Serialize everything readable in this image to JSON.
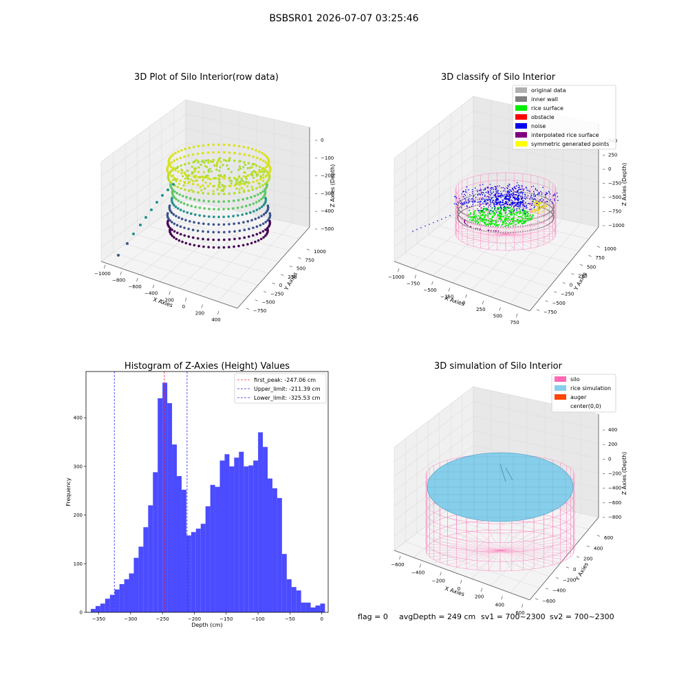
{
  "figure": {
    "suptitle": "BSBSR01 2026-07-07 03:25:46",
    "footer": {
      "flag": "flag = 0",
      "avg_depth": "avgDepth = 249 cm",
      "sv1": "sv1 = 700~2300",
      "sv2": "sv2 = 700~2300"
    }
  },
  "colors": {
    "hist_bar": "#4b4bff",
    "peak_line": "#ff2222",
    "limit_line": "#2222ff",
    "silo": "#ff69b4",
    "rice": "#87ceeb",
    "auger": "#ff4500",
    "original": "#b0b0b0",
    "inner_wall": "#808080",
    "rice_surface": "#00ee00",
    "obstacle": "#ff0000",
    "noise": "#0000ee",
    "interp": "#800080",
    "symmetric": "#ffff00"
  },
  "chart_data": [
    {
      "type": "scatter",
      "subtype": "3d",
      "title": "3D Plot of Silo Interior(row data)",
      "xlabel": "X Axies",
      "ylabel": "Y Axies",
      "zlabel": "Z Axies (Depth)",
      "x_ticks": [
        "−1000",
        "−800",
        "−600",
        "−400",
        "−200",
        "0",
        "200",
        "400"
      ],
      "y_ticks": [
        "−750",
        "−500",
        "−250",
        "0",
        "250",
        "500",
        "750",
        "1000"
      ],
      "z_ticks": [
        "0",
        "−100",
        "−200",
        "−300",
        "−400",
        "−500"
      ],
      "colormap": "viridis"
    },
    {
      "type": "scatter",
      "subtype": "3d",
      "title": "3D classify of Silo Interior",
      "xlabel": "X Axies",
      "ylabel": "Y Axies",
      "zlabel": "Z Axies (Depth)",
      "x_ticks": [
        "−1000",
        "−750",
        "−500",
        "−250",
        "0",
        "250",
        "500",
        "750"
      ],
      "y_ticks": [
        "−750",
        "−500",
        "−250",
        "0",
        "250",
        "500",
        "750",
        "1000"
      ],
      "z_ticks": [
        "500",
        "250",
        "0",
        "−250",
        "−500",
        "−750",
        "−1000"
      ],
      "legend": [
        {
          "label": "original data",
          "color": "#b0b0b0"
        },
        {
          "label": "inner wall",
          "color": "#808080"
        },
        {
          "label": "rice surface",
          "color": "#00ee00"
        },
        {
          "label": "obstacle",
          "color": "#ff0000"
        },
        {
          "label": "noise",
          "color": "#0000ee"
        },
        {
          "label": "interpolated rice surface",
          "color": "#800080"
        },
        {
          "label": "symmetric generated points",
          "color": "#ffff00"
        }
      ],
      "legend_position": "top-right"
    },
    {
      "type": "bar",
      "subtype": "histogram",
      "title": "Histogram of Z-Axies (Height) Values",
      "xlabel": "Depth (cm)",
      "ylabel": "Frequency",
      "xlim": [
        -370,
        10
      ],
      "ylim": [
        0,
        495
      ],
      "x_ticks": [
        -350,
        -300,
        -250,
        -200,
        -150,
        -100,
        -50,
        0
      ],
      "x_tick_labels": [
        "−350",
        "−300",
        "−250",
        "−200",
        "−150",
        "−100",
        "−50",
        "0"
      ],
      "y_ticks": [
        0,
        100,
        200,
        300,
        400
      ],
      "bin_start": -362.5,
      "bin_width": 7.5,
      "counts": [
        7,
        13,
        18,
        28,
        36,
        47,
        58,
        68,
        80,
        112,
        135,
        175,
        220,
        288,
        440,
        472,
        430,
        345,
        280,
        252,
        158,
        165,
        172,
        182,
        218,
        262,
        258,
        312,
        325,
        300,
        318,
        330,
        300,
        302,
        312,
        370,
        340,
        275,
        255,
        235,
        120,
        68,
        52,
        45,
        20,
        20,
        10,
        14,
        18
      ],
      "lines": [
        {
          "name": "first_peak: -247.06 cm",
          "x": -247.06,
          "color": "#ff2222"
        },
        {
          "name": "Upper_limit: -211.39 cm",
          "x": -211.39,
          "color": "#2222ff"
        },
        {
          "name": "Lower_limit: -325.53 cm",
          "x": -325.53,
          "color": "#2222ff"
        }
      ],
      "legend_position": "top-right"
    },
    {
      "type": "scatter",
      "subtype": "3d-surface",
      "title": "3D simulation of Silo Interior",
      "xlabel": "X Axies",
      "ylabel": "Y Axies",
      "zlabel": "Z Axies (Depth)",
      "x_ticks": [
        "−600",
        "−400",
        "−200",
        "0",
        "200",
        "400",
        "600"
      ],
      "y_ticks": [
        "−600",
        "−400",
        "−200",
        "0",
        "200",
        "400",
        "600"
      ],
      "z_ticks": [
        "400",
        "200",
        "0",
        "−200",
        "−400",
        "−600",
        "−800"
      ],
      "legend": [
        {
          "label": "silo",
          "color": "#ff69b4"
        },
        {
          "label": "rice simulation",
          "color": "#87ceeb"
        },
        {
          "label": "auger",
          "color": "#ff4500"
        },
        {
          "label": "center(0,0)",
          "color": "#ffffff"
        }
      ],
      "legend_position": "top-right"
    }
  ]
}
